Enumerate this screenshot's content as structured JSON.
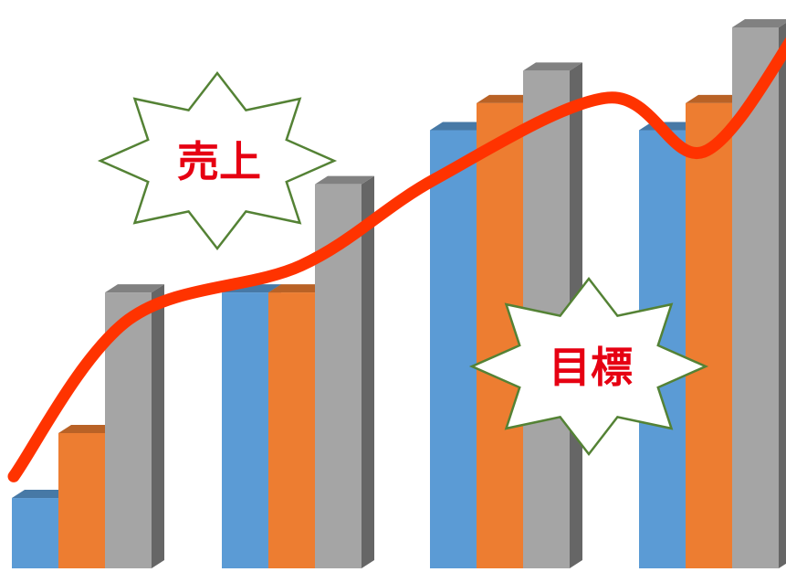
{
  "chart_data": {
    "type": "bar",
    "style": "3d-clustered-column-with-trend-line",
    "title": "",
    "xlabel": "",
    "ylabel": "",
    "ylim": [
      0,
      100
    ],
    "grid": false,
    "categories": [
      "",
      "",
      "",
      ""
    ],
    "series": [
      {
        "values": [
          13,
          51,
          81,
          81
        ],
        "color": "#5b9bd5"
      },
      {
        "values": [
          25,
          51,
          86,
          86
        ],
        "color": "#ed7d31"
      },
      {
        "values": [
          51,
          71,
          92,
          100
        ],
        "color": "#a5a5a5"
      }
    ],
    "trend_line": {
      "color": "#ff3300",
      "points": [
        [
          0.0,
          17
        ],
        [
          0.6,
          46
        ],
        [
          1.5,
          56
        ],
        [
          2.2,
          72
        ],
        [
          3.1,
          87
        ],
        [
          3.6,
          77
        ],
        [
          4.1,
          100
        ]
      ]
    },
    "annotations": [
      {
        "text": "売上",
        "shape": "starburst",
        "fill": "#ffffff",
        "stroke": "#548235",
        "text_color": "#e60012"
      },
      {
        "text": "目標",
        "shape": "starburst",
        "fill": "#ffffff",
        "stroke": "#548235",
        "text_color": "#e60012"
      }
    ]
  }
}
